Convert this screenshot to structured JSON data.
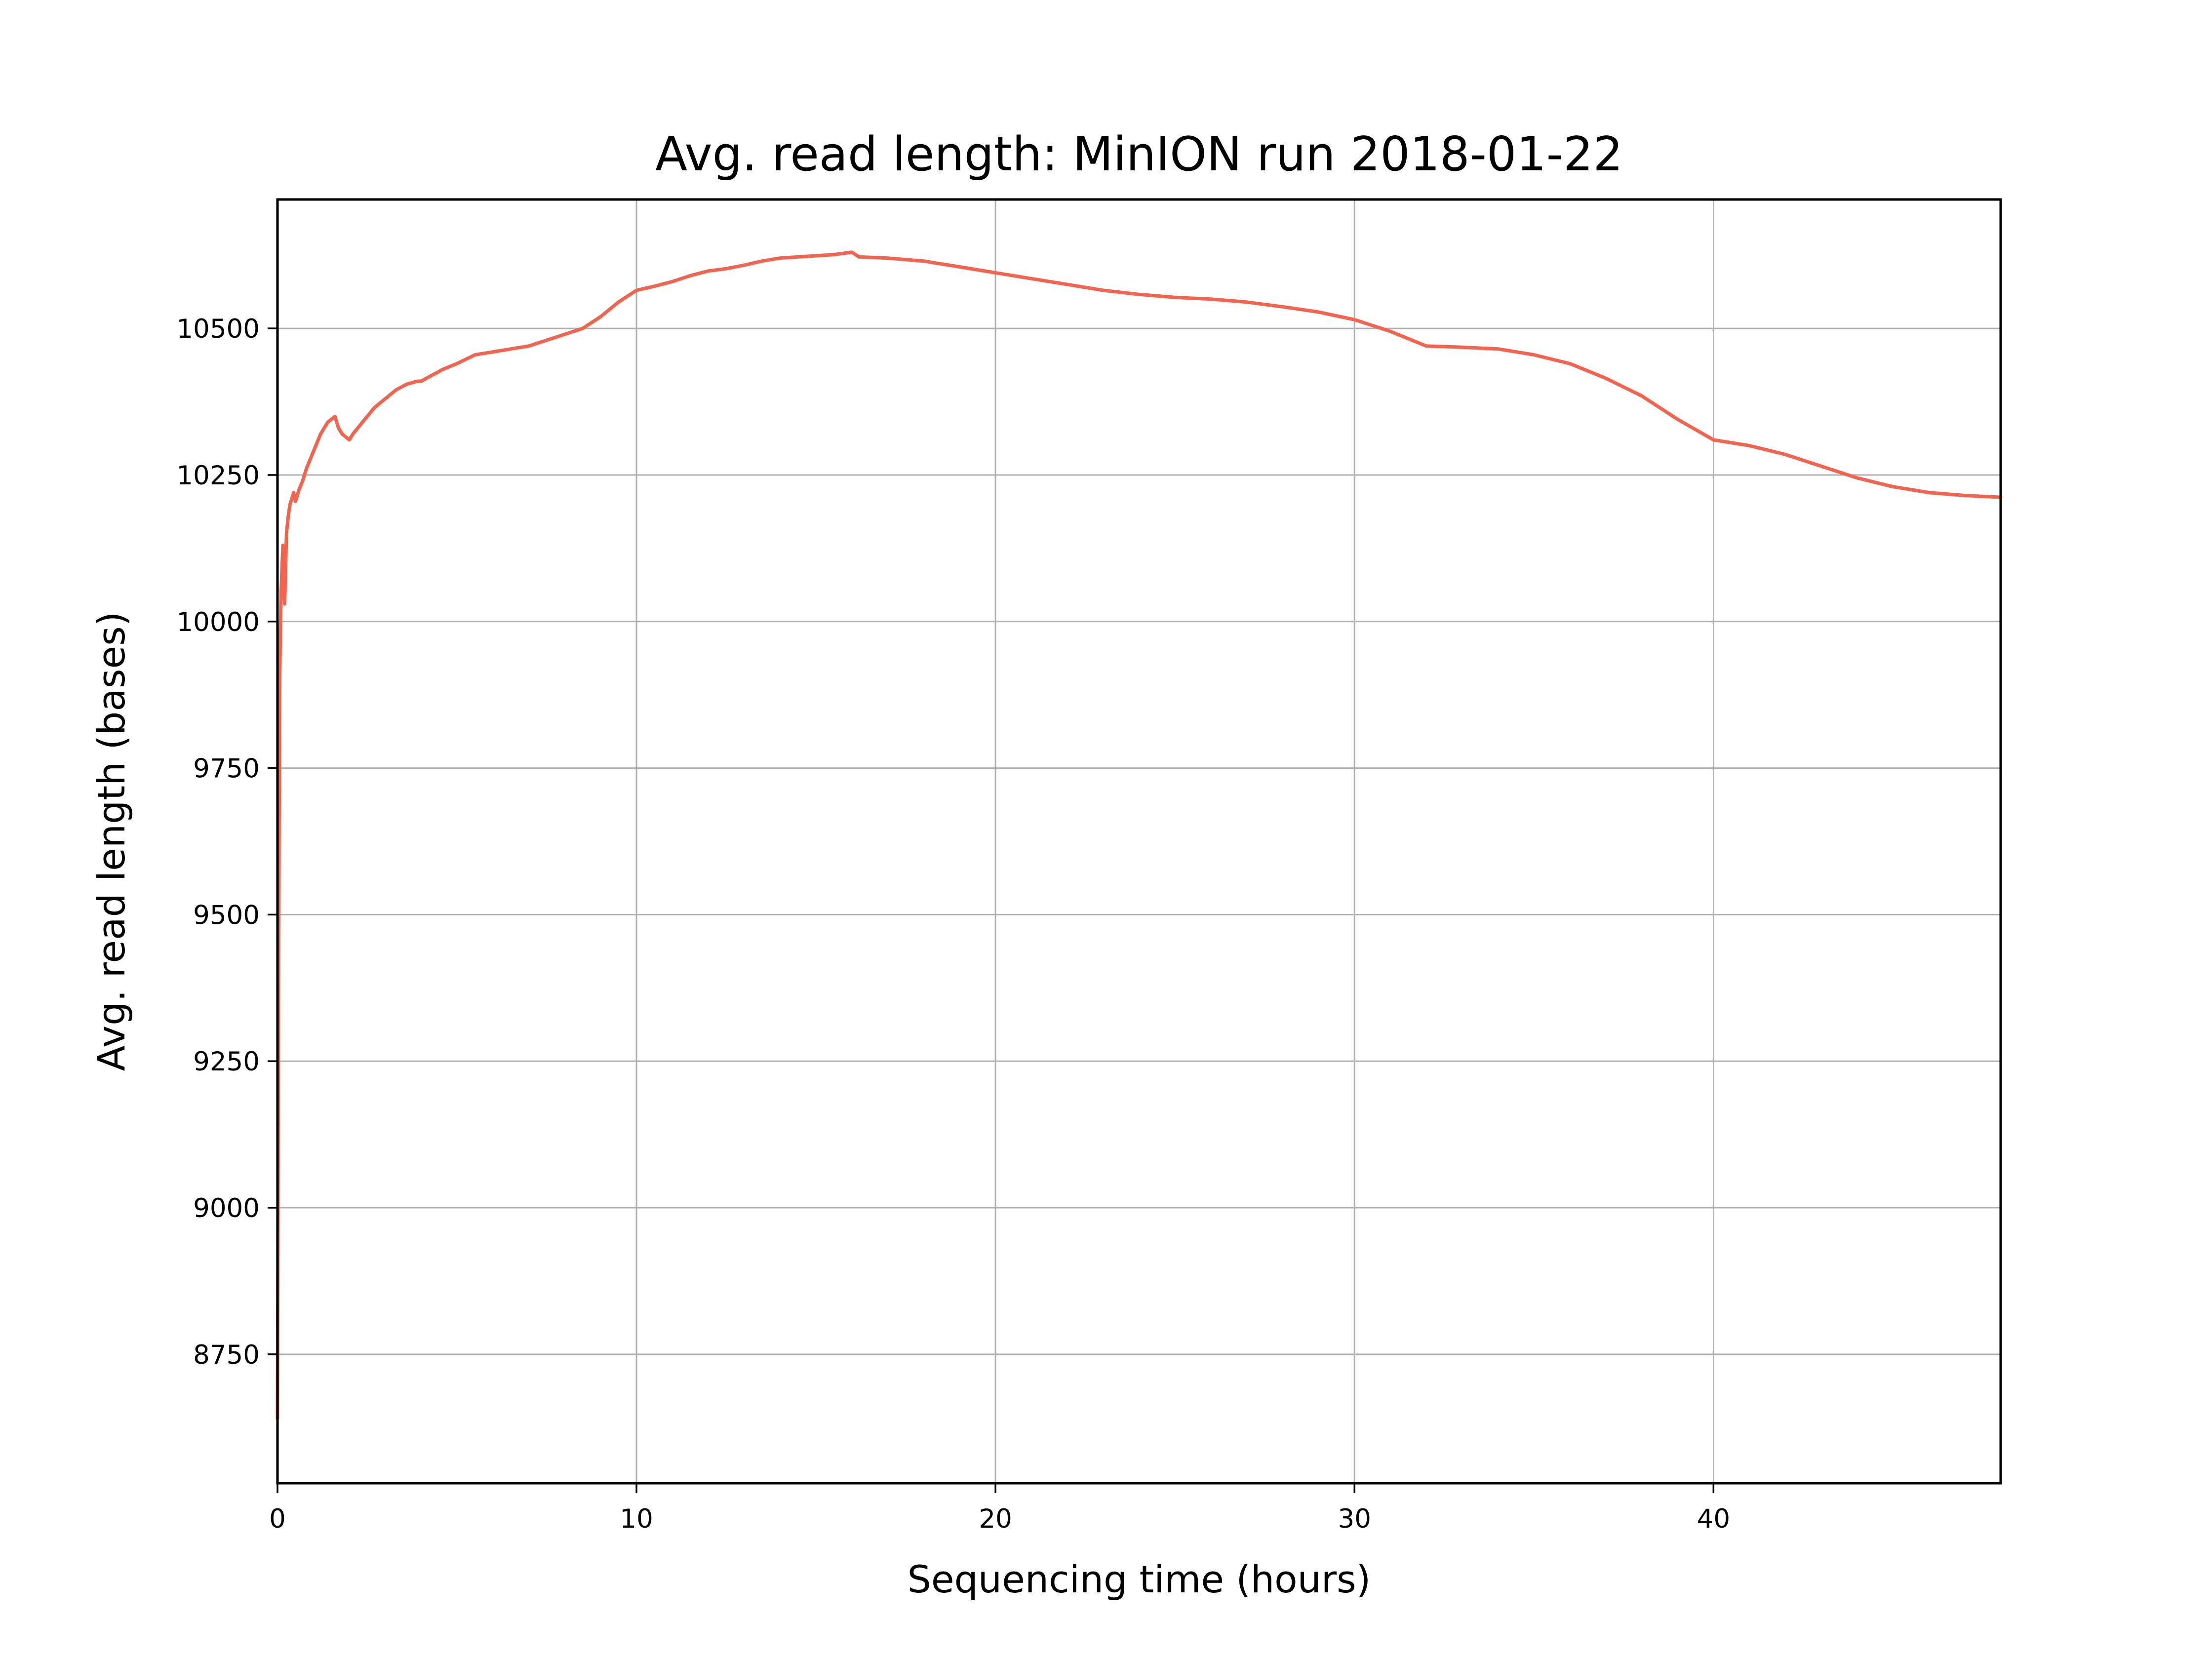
{
  "chart_data": {
    "type": "line",
    "title": "Avg. read length: MinION run 2018-01-22",
    "xlabel": "Sequencing time (hours)",
    "ylabel": "Avg. read length (bases)",
    "xlim": [
      0,
      48
    ],
    "ylim": [
      8530,
      10720
    ],
    "x_ticks": [
      0,
      10,
      20,
      30,
      40
    ],
    "y_ticks": [
      8750,
      9000,
      9250,
      9500,
      9750,
      10000,
      10250,
      10500
    ],
    "grid": true,
    "legend": "none",
    "series": [
      {
        "color": "#f06450",
        "x": [
          0.0,
          0.03,
          0.06,
          0.1,
          0.15,
          0.2,
          0.25,
          0.3,
          0.35,
          0.4,
          0.45,
          0.5,
          0.6,
          0.7,
          0.8,
          0.9,
          1.0,
          1.1,
          1.2,
          1.3,
          1.4,
          1.5,
          1.6,
          1.7,
          1.8,
          1.9,
          2.0,
          2.1,
          2.3,
          2.5,
          2.7,
          3.0,
          3.3,
          3.6,
          3.9,
          4.0,
          4.3,
          4.6,
          5.0,
          5.5,
          6.0,
          6.5,
          7.0,
          7.5,
          8.0,
          8.5,
          9.0,
          9.5,
          10.0,
          10.5,
          11.0,
          11.5,
          12.0,
          12.5,
          13.0,
          13.5,
          14.0,
          14.5,
          15.0,
          15.5,
          16.0,
          16.2,
          17.0,
          18.0,
          18.5,
          19.0,
          19.5,
          20.0,
          21.0,
          22.0,
          23.0,
          24.0,
          25.0,
          26.0,
          27.0,
          28.0,
          29.0,
          30.0,
          31.0,
          32.0,
          33.0,
          34.0,
          35.0,
          36.0,
          37.0,
          38.0,
          39.0,
          40.0,
          41.0,
          42.0,
          43.0,
          44.0,
          45.0,
          46.0,
          47.0,
          48.0
        ],
        "y": [
          8640,
          9400,
          9900,
          10050,
          10130,
          10030,
          10150,
          10180,
          10200,
          10210,
          10220,
          10205,
          10225,
          10240,
          10260,
          10275,
          10290,
          10305,
          10320,
          10330,
          10340,
          10345,
          10350,
          10330,
          10320,
          10315,
          10310,
          10320,
          10335,
          10350,
          10365,
          10380,
          10395,
          10405,
          10410,
          10410,
          10420,
          10430,
          10440,
          10455,
          10460,
          10465,
          10470,
          10480,
          10490,
          10500,
          10520,
          10545,
          10565,
          10572,
          10580,
          10590,
          10598,
          10602,
          10608,
          10615,
          10620,
          10622,
          10624,
          10626,
          10630,
          10622,
          10620,
          10615,
          10610,
          10605,
          10600,
          10595,
          10585,
          10575,
          10565,
          10558,
          10553,
          10550,
          10545,
          10537,
          10528,
          10515,
          10495,
          10470,
          10468,
          10465,
          10455,
          10440,
          10415,
          10385,
          10345,
          10310,
          10300,
          10285,
          10265,
          10245,
          10230,
          10220,
          10215,
          10212
        ]
      }
    ]
  }
}
